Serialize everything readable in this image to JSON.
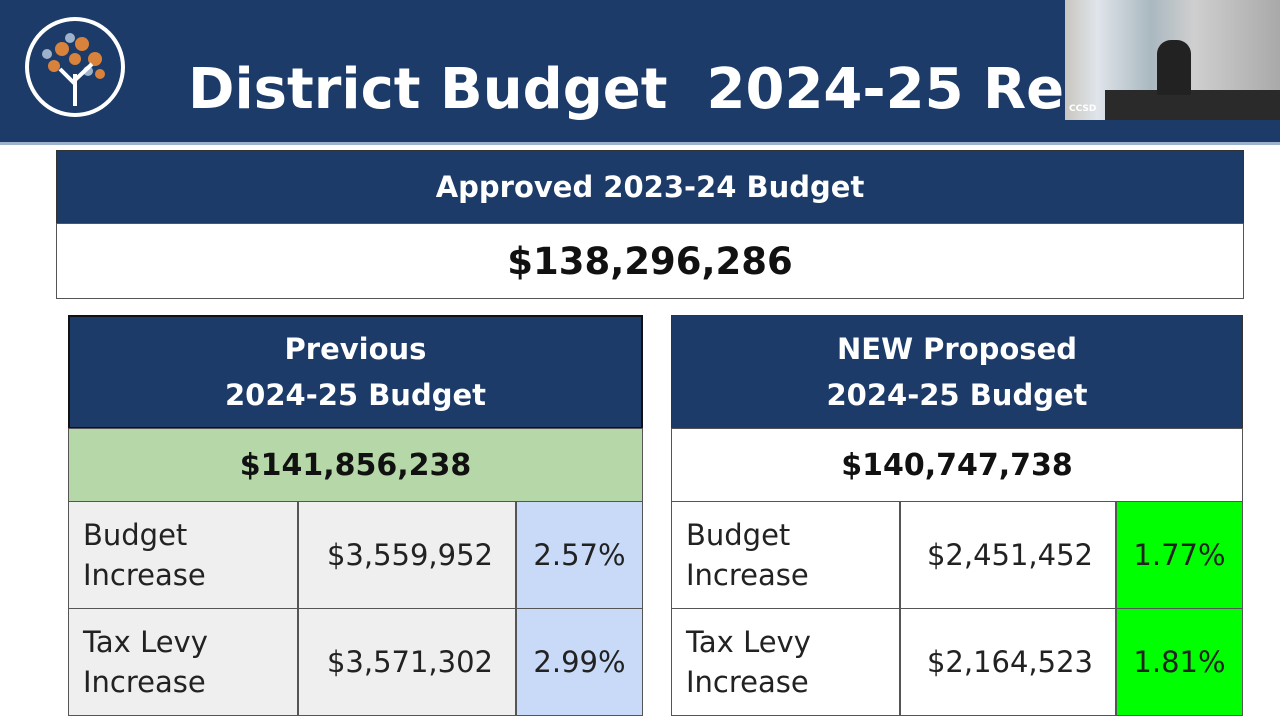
{
  "header": {
    "title": "District Budget  2024-25 Re",
    "video_label": "CCSD"
  },
  "approved": {
    "title": "Approved 2023-24 Budget",
    "amount": "$138,296,286"
  },
  "tables": [
    {
      "heading": [
        "Previous",
        "2024-25 Budget"
      ],
      "total": "$141,856,238",
      "rows": [
        [
          "Budget Increase",
          "$3,559,952",
          "2.57%"
        ],
        [
          "Tax Levy Increase",
          "$3,571,302",
          "2.99%"
        ]
      ]
    },
    {
      "heading": [
        "NEW Proposed",
        "2024-25 Budget"
      ],
      "total": "$140,747,738",
      "rows": [
        [
          "Budget Increase",
          "$2,451,452",
          "1.77%"
        ],
        [
          "Tax Levy Increase",
          "$2,164,523",
          "1.81%"
        ]
      ]
    }
  ]
}
